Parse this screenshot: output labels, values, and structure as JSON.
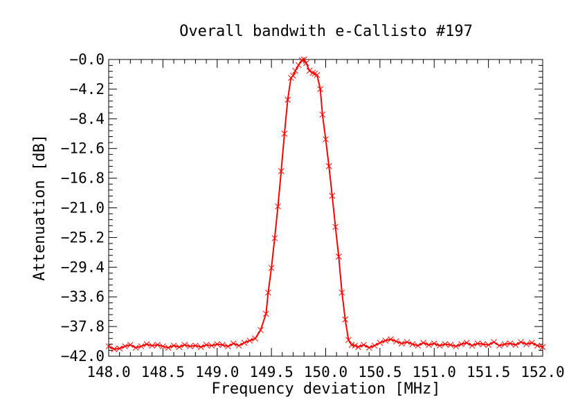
{
  "chart_data": {
    "type": "line",
    "title": "Overall bandwith e-Callisto #197",
    "xlabel": "Frequency deviation [MHz]",
    "ylabel": "Attenuation [dB]",
    "xlim": [
      148.0,
      152.0
    ],
    "ylim": [
      -42.0,
      0.0
    ],
    "x_ticks": [
      "148.0",
      "148.5",
      "149.0",
      "149.5",
      "150.0",
      "150.5",
      "151.0",
      "151.5",
      "152.0"
    ],
    "y_ticks": [
      "-0.0",
      "-4.2",
      "-8.4",
      "-12.6",
      "-16.8",
      "-21.0",
      "-25.2",
      "-29.4",
      "-33.6",
      "-37.8",
      "-42.0"
    ],
    "grid": false,
    "legend": "none",
    "marker": "x",
    "series": [
      {
        "color": "#ff0000",
        "x": [
          148.0,
          148.05,
          148.1,
          148.15,
          148.2,
          148.25,
          148.3,
          148.35,
          148.4,
          148.45,
          148.5,
          148.55,
          148.6,
          148.65,
          148.7,
          148.75,
          148.8,
          148.85,
          148.9,
          148.95,
          149.0,
          149.05,
          149.1,
          149.15,
          149.2,
          149.25,
          149.3,
          149.35,
          149.4,
          149.45,
          149.47,
          149.5,
          149.53,
          149.56,
          149.59,
          149.62,
          149.65,
          149.68,
          149.7,
          149.72,
          149.75,
          149.78,
          149.8,
          149.82,
          149.85,
          149.88,
          149.9,
          149.92,
          149.95,
          149.97,
          150.0,
          150.03,
          150.06,
          150.09,
          150.12,
          150.15,
          150.18,
          150.21,
          150.24,
          150.27,
          150.3,
          150.35,
          150.4,
          150.45,
          150.5,
          150.55,
          150.6,
          150.65,
          150.7,
          150.75,
          150.8,
          150.85,
          150.9,
          150.95,
          151.0,
          151.05,
          151.1,
          151.15,
          151.2,
          151.25,
          151.3,
          151.35,
          151.4,
          151.45,
          151.5,
          151.55,
          151.6,
          151.65,
          151.7,
          151.75,
          151.8,
          151.85,
          151.9,
          151.95,
          152.0
        ],
        "y": [
          -40.6,
          -41.0,
          -40.9,
          -40.6,
          -40.4,
          -40.8,
          -40.6,
          -40.3,
          -40.5,
          -40.4,
          -40.6,
          -40.8,
          -40.5,
          -40.7,
          -40.4,
          -40.6,
          -40.5,
          -40.7,
          -40.4,
          -40.5,
          -40.3,
          -40.4,
          -40.6,
          -40.2,
          -40.5,
          -40.1,
          -39.8,
          -39.5,
          -38.3,
          -36.0,
          -33.0,
          -29.5,
          -25.3,
          -20.8,
          -15.8,
          -10.5,
          -5.7,
          -2.6,
          -2.3,
          -1.6,
          -0.8,
          -0.1,
          0.0,
          -0.5,
          -1.6,
          -1.9,
          -2.0,
          -2.2,
          -4.2,
          -7.8,
          -11.3,
          -15.1,
          -19.3,
          -23.7,
          -27.9,
          -33.0,
          -36.8,
          -39.7,
          -40.4,
          -40.5,
          -40.7,
          -40.4,
          -40.8,
          -40.5,
          -40.1,
          -39.8,
          -39.6,
          -39.9,
          -40.2,
          -40.0,
          -40.3,
          -40.5,
          -40.1,
          -40.4,
          -40.2,
          -40.5,
          -40.3,
          -40.4,
          -40.6,
          -40.3,
          -40.1,
          -40.5,
          -40.2,
          -40.3,
          -40.4,
          -40.0,
          -40.5,
          -40.3,
          -40.2,
          -40.4,
          -40.0,
          -40.3,
          -40.1,
          -40.5,
          -40.7
        ]
      }
    ]
  }
}
